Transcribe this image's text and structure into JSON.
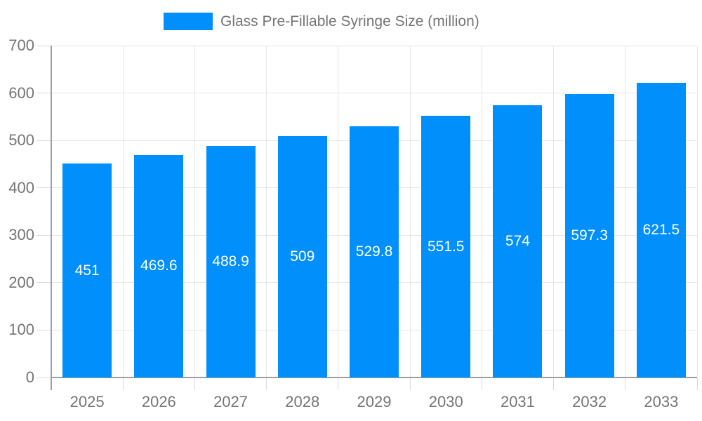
{
  "chart_data": {
    "type": "bar",
    "title": "Glass Pre-Fillable Syringe Size (million)",
    "legend": {
      "position": "top",
      "items": [
        {
          "label": "Glass Pre-Fillable Syringe Size (million)",
          "color": "#008FFB"
        }
      ]
    },
    "categories": [
      "2025",
      "2026",
      "2027",
      "2028",
      "2029",
      "2030",
      "2031",
      "2032",
      "2033"
    ],
    "series": [
      {
        "name": "Glass Pre-Fillable Syringe Size (million)",
        "values": [
          451,
          469.6,
          488.9,
          509,
          529.8,
          551.5,
          574,
          597.3,
          621.5
        ]
      }
    ],
    "value_labels": [
      "451",
      "469.6",
      "488.9",
      "509",
      "529.8",
      "551.5",
      "574",
      "597.3",
      "621.5"
    ],
    "xlabel": "",
    "ylabel": "",
    "ylim": [
      0,
      700
    ],
    "yticks": [
      0,
      100,
      200,
      300,
      400,
      500,
      600,
      700
    ],
    "grid": "both",
    "colors": {
      "bar": "#008FFB",
      "value_label": "#ffffff",
      "axis_text": "#757575",
      "gridline": "#e6e6e6",
      "axis_line": "#9e9e9e",
      "tick": "#d9d9d9"
    }
  }
}
